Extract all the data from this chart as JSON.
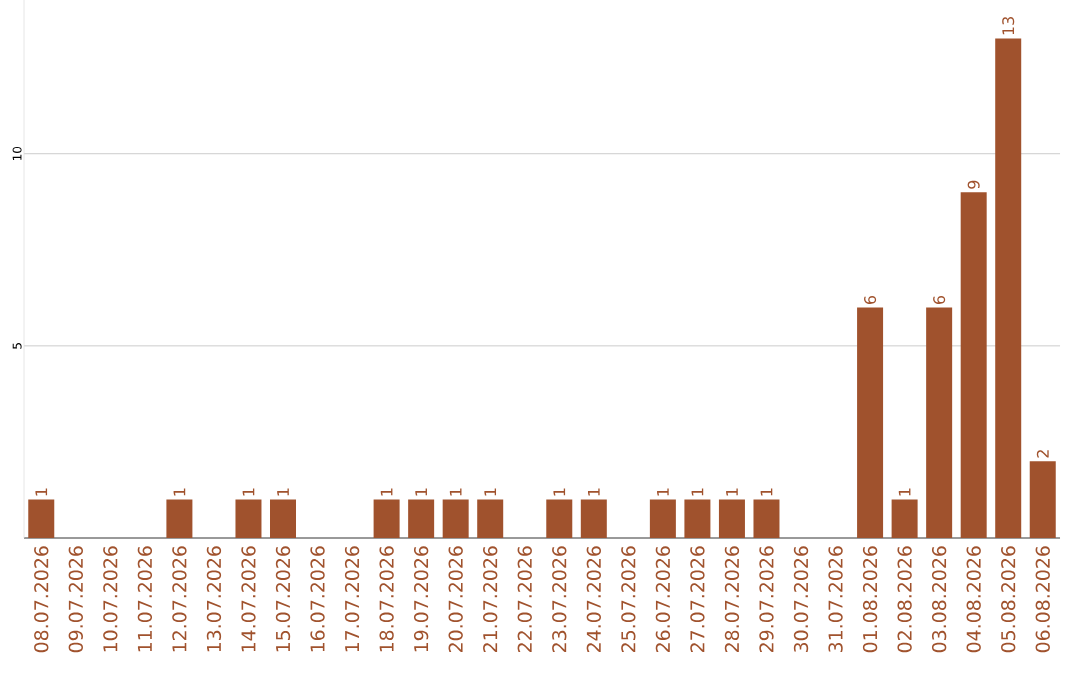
{
  "chart_data": {
    "type": "bar",
    "categories": [
      "08.07.2026",
      "09.07.2026",
      "10.07.2026",
      "11.07.2026",
      "12.07.2026",
      "13.07.2026",
      "14.07.2026",
      "15.07.2026",
      "16.07.2026",
      "17.07.2026",
      "18.07.2026",
      "19.07.2026",
      "20.07.2026",
      "21.07.2026",
      "22.07.2026",
      "23.07.2026",
      "24.07.2026",
      "25.07.2026",
      "26.07.2026",
      "27.07.2026",
      "28.07.2026",
      "29.07.2026",
      "30.07.2026",
      "31.07.2026",
      "01.08.2026",
      "02.08.2026",
      "03.08.2026",
      "04.08.2026",
      "05.08.2026",
      "06.08.2026"
    ],
    "values": [
      1,
      0,
      0,
      0,
      1,
      0,
      1,
      1,
      0,
      0,
      1,
      1,
      1,
      1,
      0,
      1,
      1,
      0,
      1,
      1,
      1,
      1,
      0,
      0,
      6,
      1,
      6,
      9,
      13,
      2
    ],
    "value_labels": [
      "1",
      null,
      null,
      null,
      "1",
      null,
      "1",
      "1",
      null,
      null,
      "1",
      "1",
      "1",
      "1",
      null,
      "1",
      "1",
      null,
      "1",
      "1",
      "1",
      "1",
      null,
      null,
      "6",
      "1",
      "6",
      "9",
      "13",
      "2"
    ],
    "color": "#a0522d",
    "ylim": [
      0,
      14
    ],
    "yticks": [
      5,
      10
    ],
    "grid": "y"
  }
}
